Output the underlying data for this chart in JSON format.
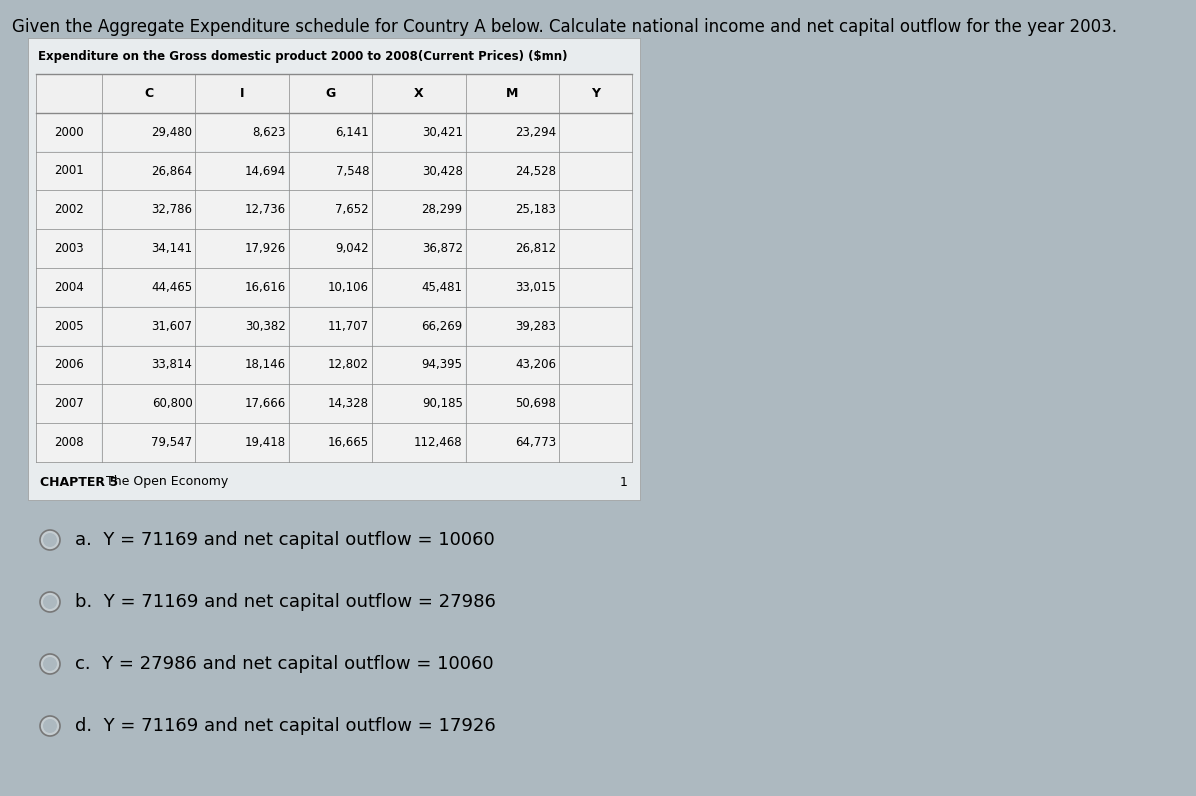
{
  "page_title": "Given the Aggregate Expenditure schedule for Country A below. Calculate national income and net capital outflow for the year 2003.",
  "table_title": "Expenditure on the Gross domestic product 2000 to 2008(Current Prices) ($mn)",
  "columns": [
    "",
    "C",
    "I",
    "G",
    "X",
    "M",
    "Y"
  ],
  "rows": [
    [
      "2000",
      "29,480",
      "8,623",
      "6,141",
      "30,421",
      "23,294",
      ""
    ],
    [
      "2001",
      "26,864",
      "14,694",
      "7,548",
      "30,428",
      "24,528",
      ""
    ],
    [
      "2002",
      "32,786",
      "12,736",
      "7,652",
      "28,299",
      "25,183",
      ""
    ],
    [
      "2003",
      "34,141",
      "17,926",
      "9,042",
      "36,872",
      "26,812",
      ""
    ],
    [
      "2004",
      "44,465",
      "16,616",
      "10,106",
      "45,481",
      "33,015",
      ""
    ],
    [
      "2005",
      "31,607",
      "30,382",
      "11,707",
      "66,269",
      "39,283",
      ""
    ],
    [
      "2006",
      "33,814",
      "18,146",
      "12,802",
      "94,395",
      "43,206",
      ""
    ],
    [
      "2007",
      "60,800",
      "17,666",
      "14,328",
      "90,185",
      "50,698",
      ""
    ],
    [
      "2008",
      "79,547",
      "19,418",
      "16,665",
      "112,468",
      "64,773",
      ""
    ]
  ],
  "chapter_text": "CHAPTER 5",
  "chapter_text2": "  The Open Economy",
  "page_number": "1",
  "options": [
    {
      "label": "a.",
      "text": "Y = 71169 and net capital outflow = 10060"
    },
    {
      "label": "b.",
      "text": "Y = 71169 and net capital outflow = 27986"
    },
    {
      "label": "c.",
      "text": "Y = 27986 and net capital outflow = 10060"
    },
    {
      "label": "d.",
      "text": "Y = 71169 and net capital outflow = 17926"
    }
  ],
  "bg_color": "#adb9c0",
  "table_bg": "#e8ecee",
  "panel_bg": "#dde3e6",
  "table_border_color": "#888888",
  "title_font_size": 12,
  "table_title_font_size": 8.5,
  "table_font_size": 8.5,
  "option_font_size": 13,
  "chapter_font_size": 9
}
